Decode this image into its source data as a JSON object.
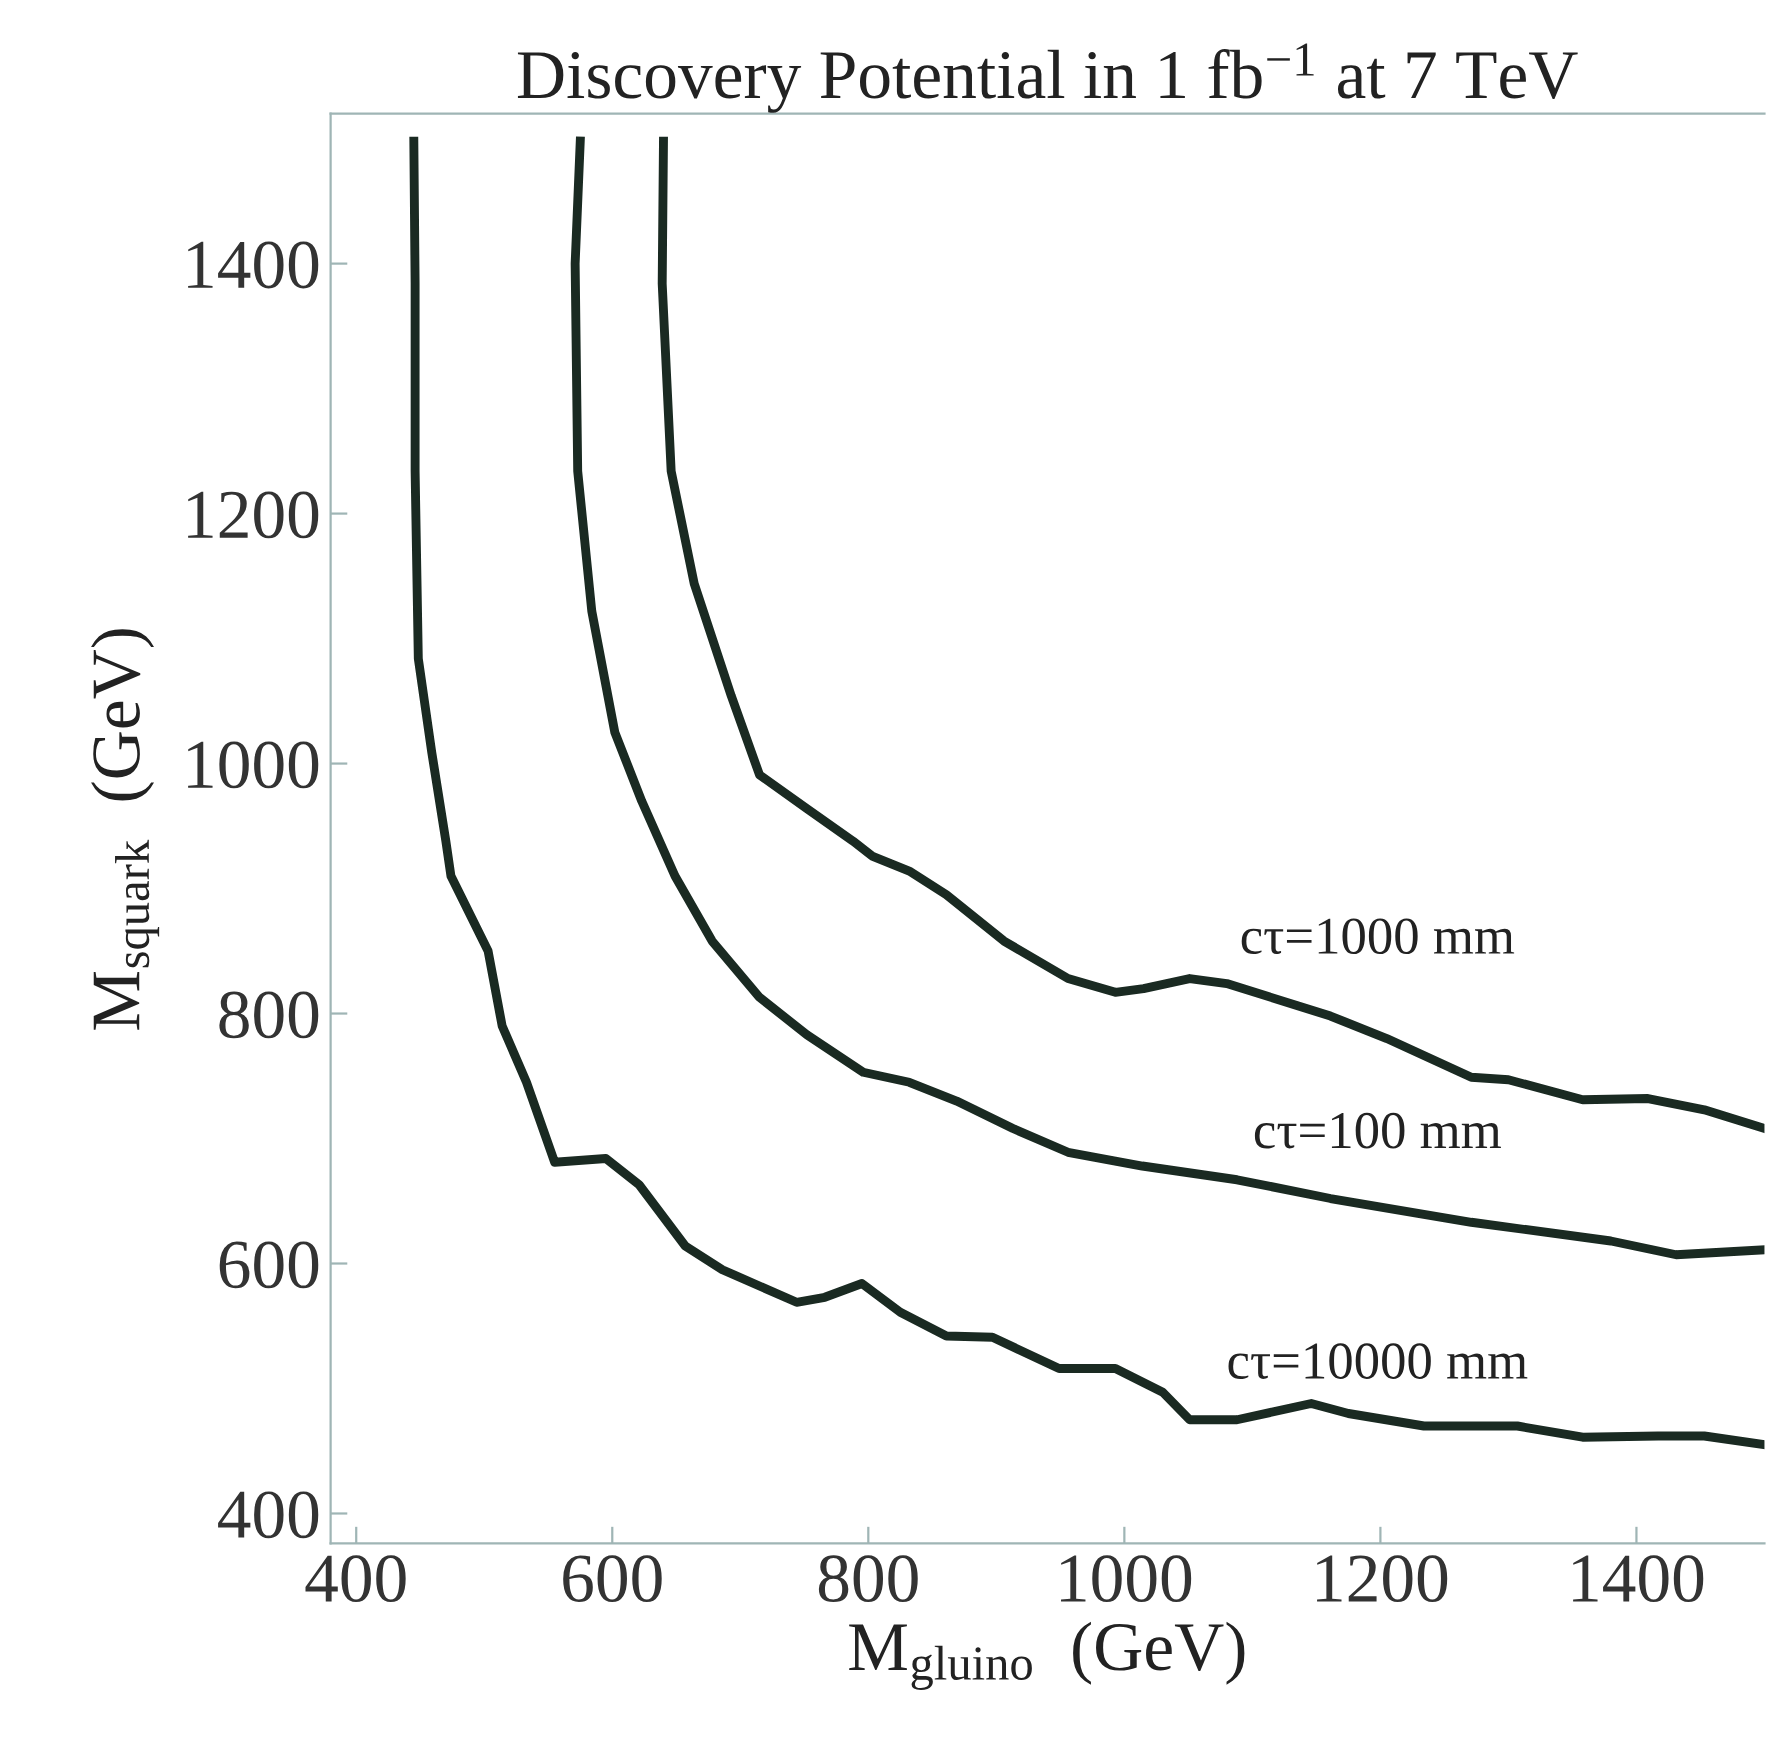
{
  "chart_data": {
    "type": "line",
    "title": "Discovery Potential in 1 fb$^{−1}$ at 7 TeV",
    "xlabel": "M$_{gluino}$  (GeV)",
    "ylabel": "M$_{squark}$  (GeV)",
    "xlim": [
      380,
      1500
    ],
    "ylim": [
      376,
      1520
    ],
    "xticks": [
      400,
      600,
      800,
      1000,
      1200,
      1400
    ],
    "yticks": [
      400,
      600,
      800,
      1000,
      1200,
      1400
    ],
    "grid": false,
    "legend": false,
    "line_style": "solid",
    "marker": "none",
    "series": [
      {
        "name": "cτ=10000 mm",
        "color": "#1a2a22",
        "x": [
          445,
          446,
          446,
          448.5,
          459,
          470,
          474,
          503,
          514,
          533,
          555,
          595,
          621,
          657,
          686,
          744,
          766,
          795,
          825,
          861,
          897,
          949,
          993,
          1030,
          1051,
          1088,
          1146,
          1175,
          1234,
          1307,
          1358,
          1417,
          1453,
          1500
        ],
        "values": [
          1498,
          1384,
          1234,
          1084,
          1009,
          938,
          910,
          850,
          790,
          745,
          681,
          684,
          663,
          614,
          595,
          569,
          573,
          584,
          561,
          542,
          541,
          516,
          516,
          497,
          475,
          475,
          488,
          480,
          470,
          470,
          461,
          462,
          462,
          455
        ]
      },
      {
        "name": "cτ=100 mm",
        "color": "#1a2a22",
        "x": [
          575,
          571,
          573,
          584,
          602,
          623,
          649,
          678,
          715,
          752,
          796,
          832,
          869,
          913,
          956,
          1014,
          1088,
          1161,
          1271,
          1380,
          1431,
          1500
        ],
        "values": [
          1498,
          1400,
          1234,
          1122,
          1025,
          970,
          910,
          858,
          813,
          783,
          753,
          745,
          730,
          708,
          689,
          678,
          667,
          652,
          633,
          618,
          607,
          611
        ]
      },
      {
        "name": "cτ=1000 mm",
        "color": "#1a2a22",
        "x": [
          640,
          639,
          646,
          664,
          693,
          715,
          752,
          788,
          803,
          832,
          861,
          906,
          956,
          993,
          1015,
          1051,
          1080,
          1161,
          1205,
          1271,
          1300,
          1358,
          1409,
          1453,
          1500
        ],
        "values": [
          1498,
          1384,
          1234,
          1144,
          1054,
          991,
          964,
          938,
          926,
          914,
          895,
          858,
          828,
          817,
          820,
          828,
          824,
          798,
          780,
          749,
          747,
          731,
          732,
          723,
          708
        ]
      }
    ]
  }
}
